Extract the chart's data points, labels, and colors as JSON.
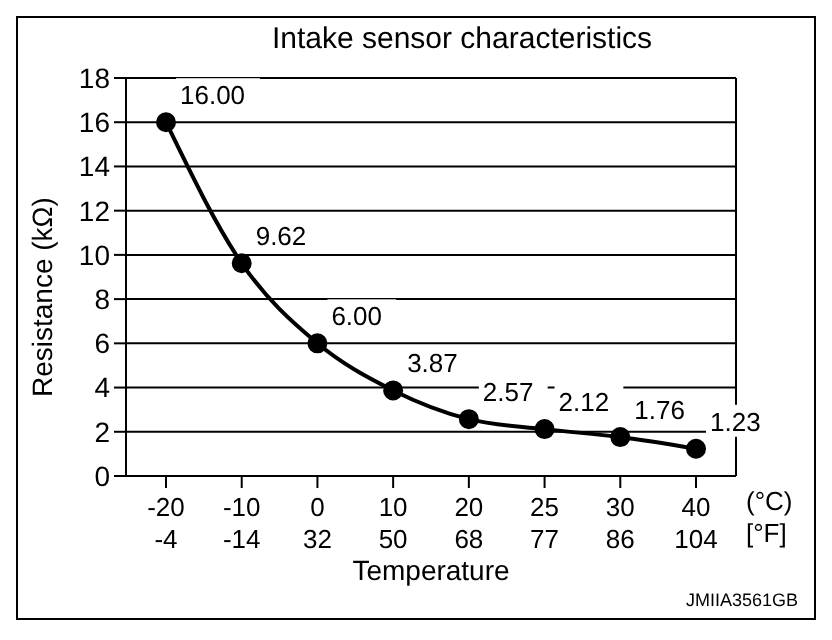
{
  "chart_data": {
    "type": "line",
    "title": "Intake sensor characteristics",
    "xlabel": "Temperature",
    "ylabel": "Resistance (kΩ)",
    "categories": [
      "-20\n-4",
      "-10\n-14",
      "0\n32",
      "10\n50",
      "20\n68",
      "25\n77",
      "30\n86",
      "40\n104"
    ],
    "series": [
      {
        "color": "#000000",
        "values": [
          16,
          9.62,
          6,
          3.87,
          2.57,
          2.12,
          1.76,
          1.23
        ],
        "value_labels": [
          "16.00",
          "9.62",
          "6.00",
          "3.87",
          "2.57",
          "2.12",
          "1.76",
          "1.23"
        ]
      }
    ],
    "ylim": [
      0,
      18
    ],
    "yticks": [
      0,
      2,
      4,
      6,
      8,
      10,
      12,
      14,
      16,
      18
    ],
    "grid": "y",
    "marker": "circle",
    "line_style": "solid",
    "annotations": [
      "(°C)",
      "[°F]",
      "JMIIA3561GB"
    ]
  }
}
